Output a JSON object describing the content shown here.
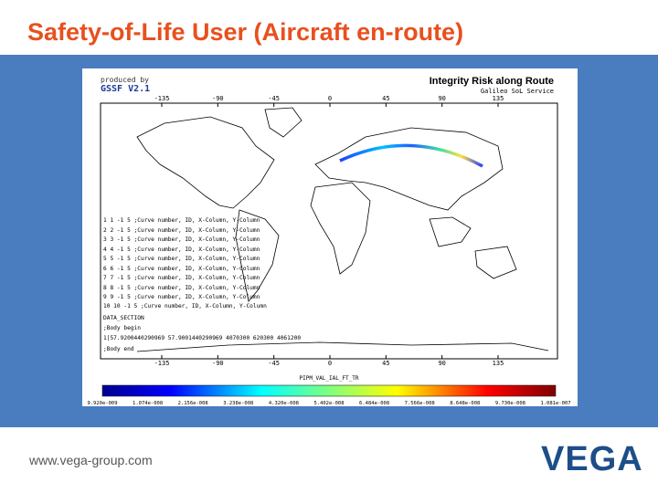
{
  "slide": {
    "title": "Safety-of-Life User (Aircraft en-route)",
    "footer_url": "www.vega-group.com",
    "logo": "VEGA"
  },
  "figure": {
    "produced_by": "produced by",
    "software": "GSSF V2.1",
    "title": "Integrity Risk along Route",
    "subtitle": "Galileo SoL Service",
    "lon_ticks": [
      -135,
      -90,
      -45,
      0,
      45,
      90,
      135
    ],
    "text_lines": [
      "1 1 -1 5 ;Curve number, ID, X-Column, Y-Column",
      "2 2 -1 5 ;Curve number, ID, X-Column, Y-Column",
      "3 3 -1 5 ;Curve number, ID, X-Column, Y-Column",
      "4 4 -1 5 ;Curve number, ID, X-Column, Y-Column",
      "5 5 -1 5 ;Curve number, ID, X-Column, Y-Column",
      "6 6 -1 5 ;Curve number, ID, X-Column, Y-Column",
      "7 7 -1 5 ;Curve number, ID, X-Column, Y-Column",
      "8 8 -1 5 ;Curve number, ID, X-Column, Y-Column",
      "9 9 -1 5 ;Curve number, ID, X-Column, Y-Column",
      "10 10 -1 5 ;Curve number, ID, X-Column, Y-Column",
      "DATA_SECTION",
      ";Body begin",
      "1|57.9200440290969 57.9001440290969 4070300 620300 4061200",
      ";Body end"
    ],
    "colorbar_label": "PIPM_VAL_IAL_FT_TR",
    "colorbar_ticks": [
      "9.920e-009",
      "1.074e-008",
      "2.156e-008",
      "3.238e-008",
      "4.320e-008",
      "5.402e-008",
      "6.484e-008",
      "7.566e-008",
      "8.648e-008",
      "9.730e-008",
      "1.081e-007"
    ]
  }
}
